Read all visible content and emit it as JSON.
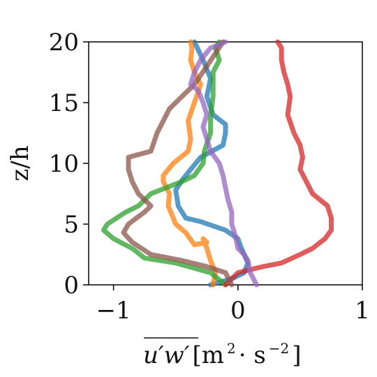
{
  "chart_data": {
    "type": "line",
    "xlabel_main": "u′w′",
    "xlabel_units_open": " [m",
    "xlabel_units_sup1": "2",
    "xlabel_units_mid": " · s",
    "xlabel_units_sup2": "−2",
    "xlabel_units_close": "]",
    "ylabel": "z/h",
    "xlim": [
      -1.2,
      1.0
    ],
    "ylim": [
      0,
      20
    ],
    "xticks": [
      -1,
      0,
      1
    ],
    "xtick_labels": [
      "−1",
      "0",
      "1"
    ],
    "yticks": [
      0,
      5,
      10,
      15,
      20
    ],
    "ytick_labels": [
      "0",
      "5",
      "10",
      "15",
      "20"
    ],
    "grid": false,
    "series": [
      {
        "color": "#1f77b4",
        "x": [
          -0.22,
          -0.05,
          0.05,
          0.08,
          0.05,
          0.02,
          0.0,
          -0.1,
          -0.3,
          -0.42,
          -0.48,
          -0.5,
          -0.45,
          -0.38,
          -0.3,
          -0.12,
          -0.1,
          -0.1,
          -0.2,
          -0.25,
          -0.22,
          -0.28,
          -0.35
        ],
        "y": [
          0,
          0.5,
          1.0,
          1.8,
          2.5,
          3.2,
          3.8,
          4.5,
          5.2,
          5.5,
          6.5,
          7.8,
          8.6,
          9.5,
          10.5,
          11.5,
          12.5,
          13.2,
          14.0,
          15.5,
          17.0,
          18.5,
          20
        ]
      },
      {
        "color": "#ff7f0e",
        "x": [
          -0.2,
          -0.18,
          -0.22,
          -0.25,
          -0.28,
          -0.25,
          -0.35,
          -0.42,
          -0.5,
          -0.56,
          -0.55,
          -0.6,
          -0.6,
          -0.52,
          -0.4,
          -0.38,
          -0.4,
          -0.35,
          -0.3,
          -0.35,
          -0.38,
          -0.37,
          -0.38
        ],
        "y": [
          0,
          1.0,
          2.0,
          3.0,
          3.8,
          3.5,
          3.3,
          4.3,
          5.0,
          6.5,
          7.5,
          8.5,
          9.0,
          10.0,
          11.0,
          12.0,
          13.5,
          15.0,
          16.5,
          17.5,
          18.5,
          19.5,
          20
        ]
      },
      {
        "color": "#2ca02c",
        "x": [
          -0.1,
          -0.22,
          -0.5,
          -0.75,
          -0.85,
          -1.0,
          -1.08,
          -1.05,
          -0.9,
          -0.8,
          -0.7,
          -0.45,
          -0.35,
          -0.28,
          -0.27,
          -0.22,
          -0.22,
          -0.2,
          -0.2,
          -0.2,
          -0.15,
          -0.18,
          -0.15
        ],
        "y": [
          0,
          1.0,
          1.8,
          2.2,
          3.0,
          3.8,
          4.5,
          5.0,
          6.0,
          6.5,
          7.5,
          8.5,
          9.0,
          10.0,
          11.0,
          12.5,
          14.0,
          15.5,
          16.5,
          17.5,
          18.5,
          19.5,
          20
        ]
      },
      {
        "color": "#d62728",
        "x": [
          -0.1,
          0.0,
          0.2,
          0.35,
          0.5,
          0.6,
          0.7,
          0.75,
          0.75,
          0.72,
          0.6,
          0.55,
          0.5,
          0.52,
          0.5,
          0.45,
          0.4,
          0.42,
          0.4,
          0.37,
          0.35,
          0.35,
          0.32
        ],
        "y": [
          0,
          1.0,
          1.5,
          1.8,
          2.5,
          3.0,
          3.8,
          4.5,
          5.5,
          6.5,
          7.5,
          8.5,
          9.5,
          10.5,
          11.5,
          12.5,
          14.0,
          15.5,
          16.5,
          17.5,
          18.5,
          19.5,
          20
        ]
      },
      {
        "color": "#8c564b",
        "x": [
          -0.05,
          -0.1,
          -0.25,
          -0.45,
          -0.7,
          -0.85,
          -0.92,
          -0.88,
          -0.75,
          -0.7,
          -0.8,
          -0.85,
          -0.88,
          -0.88,
          -0.7,
          -0.65,
          -0.6,
          -0.55,
          -0.5,
          -0.45,
          -0.35,
          -0.25,
          -0.12
        ],
        "y": [
          0,
          1.0,
          1.5,
          2.0,
          2.5,
          3.5,
          4.3,
          5.0,
          6.0,
          6.5,
          7.5,
          8.5,
          9.5,
          10.5,
          11.0,
          12.5,
          13.5,
          14.5,
          15.0,
          15.5,
          16.5,
          18.0,
          20
        ]
      },
      {
        "color": "#9467bd",
        "x": [
          0.15,
          0.1,
          0.08,
          0.05,
          0.0,
          -0.02,
          -0.05,
          -0.05,
          -0.08,
          -0.1,
          -0.12,
          -0.15,
          -0.22,
          -0.25,
          -0.28,
          -0.25,
          -0.28,
          -0.32,
          -0.38,
          -0.35,
          -0.3,
          -0.22,
          -0.1
        ],
        "y": [
          0,
          1.0,
          2.0,
          2.5,
          3.0,
          4.0,
          5.0,
          6.0,
          7.0,
          8.0,
          9.0,
          10.0,
          11.0,
          12.0,
          13.0,
          14.0,
          15.0,
          16.0,
          16.5,
          17.5,
          18.5,
          19.5,
          20
        ]
      }
    ]
  }
}
